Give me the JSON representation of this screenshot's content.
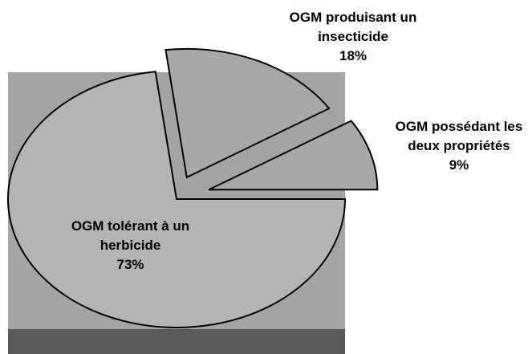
{
  "chart_data": {
    "type": "pie",
    "categories": [
      "OGM tolérant à un herbicide",
      "OGM produisant un insecticide",
      "OGM possédant les deux propriétés"
    ],
    "values": [
      73,
      18,
      9
    ],
    "value_labels": [
      "73%",
      "18%",
      "9%"
    ],
    "colors": [
      "#b4b4b4",
      "#a8a8a8",
      "#a8a8a8"
    ]
  }
}
